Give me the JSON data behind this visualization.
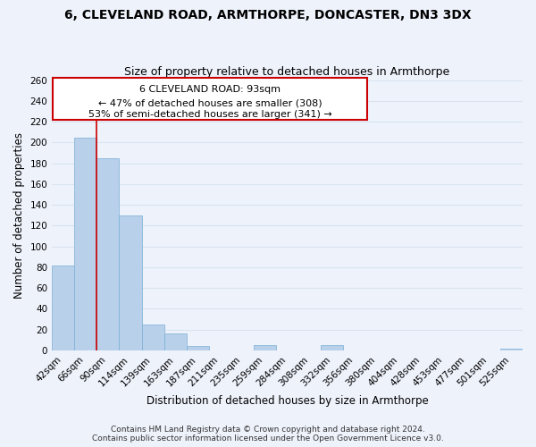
{
  "title": "6, CLEVELAND ROAD, ARMTHORPE, DONCASTER, DN3 3DX",
  "subtitle": "Size of property relative to detached houses in Armthorpe",
  "xlabel": "Distribution of detached houses by size in Armthorpe",
  "ylabel": "Number of detached properties",
  "bar_labels": [
    "42sqm",
    "66sqm",
    "90sqm",
    "114sqm",
    "139sqm",
    "163sqm",
    "187sqm",
    "211sqm",
    "235sqm",
    "259sqm",
    "284sqm",
    "308sqm",
    "332sqm",
    "356sqm",
    "380sqm",
    "404sqm",
    "428sqm",
    "453sqm",
    "477sqm",
    "501sqm",
    "525sqm"
  ],
  "bar_values": [
    82,
    205,
    185,
    130,
    25,
    16,
    4,
    0,
    0,
    5,
    0,
    0,
    5,
    0,
    0,
    0,
    0,
    0,
    0,
    0,
    2
  ],
  "bar_color": "#b8d0ea",
  "bar_edge_color": "#7aaed4",
  "vline_index": 2,
  "vline_color": "#cc0000",
  "ylim": [
    0,
    260
  ],
  "yticks": [
    0,
    20,
    40,
    60,
    80,
    100,
    120,
    140,
    160,
    180,
    200,
    220,
    240,
    260
  ],
  "annotation_title": "6 CLEVELAND ROAD: 93sqm",
  "annotation_line1": "← 47% of detached houses are smaller (308)",
  "annotation_line2": "53% of semi-detached houses are larger (341) →",
  "annotation_box_color": "#ffffff",
  "annotation_box_edge": "#cc0000",
  "footer_line1": "Contains HM Land Registry data © Crown copyright and database right 2024.",
  "footer_line2": "Contains public sector information licensed under the Open Government Licence v3.0.",
  "background_color": "#eef2fb",
  "grid_color": "#d8e4f0",
  "title_fontsize": 10,
  "subtitle_fontsize": 9,
  "xlabel_fontsize": 8.5,
  "ylabel_fontsize": 8.5,
  "tick_fontsize": 7.5,
  "ann_fontsize": 8,
  "footer_fontsize": 6.5
}
